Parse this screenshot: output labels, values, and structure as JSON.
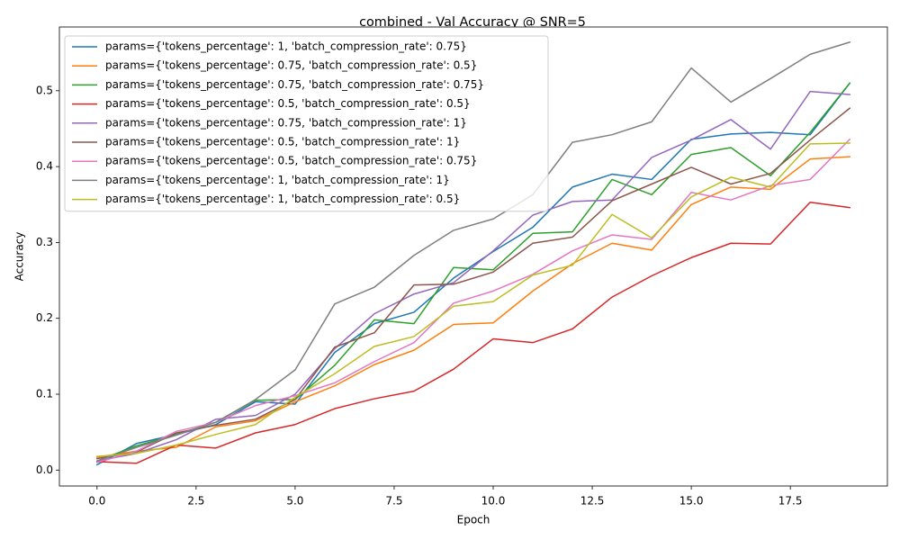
{
  "chart_data": {
    "type": "line",
    "title": "combined - Val Accuracy @ SNR=5",
    "xlabel": "Epoch",
    "ylabel": "Accuracy",
    "xlim": [
      -0.95,
      19.95
    ],
    "ylim": [
      -0.021,
      0.584
    ],
    "xticks": [
      0.0,
      2.5,
      5.0,
      7.5,
      10.0,
      12.5,
      15.0,
      17.5
    ],
    "xtick_labels": [
      "0.0",
      "2.5",
      "5.0",
      "7.5",
      "10.0",
      "12.5",
      "15.0",
      "17.5"
    ],
    "yticks": [
      0.0,
      0.1,
      0.2,
      0.3,
      0.4,
      0.5
    ],
    "ytick_labels": [
      "0.0",
      "0.1",
      "0.2",
      "0.3",
      "0.4",
      "0.5"
    ],
    "grid": false,
    "legend_position": "upper-left",
    "x": [
      0,
      1,
      2,
      3,
      4,
      5,
      6,
      7,
      8,
      9,
      10,
      11,
      12,
      13,
      14,
      15,
      16,
      17,
      18,
      19
    ],
    "series": [
      {
        "name": "params={'tokens_percentage': 1, 'batch_compression_rate': 0.75}",
        "color": "#1f77b4",
        "values": [
          0.007,
          0.035,
          0.047,
          0.06,
          0.09,
          0.087,
          0.155,
          0.193,
          0.208,
          0.253,
          0.288,
          0.32,
          0.373,
          0.39,
          0.383,
          0.436,
          0.443,
          0.445,
          0.442,
          0.51
        ]
      },
      {
        "name": "params={'tokens_percentage': 0.75, 'batch_compression_rate': 0.5}",
        "color": "#ff7f0e",
        "values": [
          0.017,
          0.025,
          0.03,
          0.057,
          0.065,
          0.09,
          0.111,
          0.139,
          0.158,
          0.192,
          0.194,
          0.236,
          0.272,
          0.299,
          0.29,
          0.35,
          0.373,
          0.37,
          0.41,
          0.413
        ]
      },
      {
        "name": "params={'tokens_percentage': 0.75, 'batch_compression_rate': 0.75}",
        "color": "#2ca02c",
        "values": [
          0.012,
          0.032,
          0.047,
          0.063,
          0.092,
          0.093,
          0.138,
          0.198,
          0.193,
          0.267,
          0.264,
          0.312,
          0.314,
          0.383,
          0.363,
          0.416,
          0.425,
          0.388,
          0.445,
          0.51
        ]
      },
      {
        "name": "params={'tokens_percentage': 0.5, 'batch_compression_rate': 0.5}",
        "color": "#d62728",
        "values": [
          0.011,
          0.009,
          0.033,
          0.029,
          0.049,
          0.06,
          0.081,
          0.094,
          0.104,
          0.133,
          0.173,
          0.168,
          0.186,
          0.228,
          0.256,
          0.28,
          0.299,
          0.298,
          0.353,
          0.346
        ]
      },
      {
        "name": "params={'tokens_percentage': 0.75, 'batch_compression_rate': 1}",
        "color": "#9467bd",
        "values": [
          0.012,
          0.022,
          0.04,
          0.067,
          0.072,
          0.1,
          0.16,
          0.206,
          0.232,
          0.247,
          0.289,
          0.336,
          0.354,
          0.356,
          0.412,
          0.435,
          0.462,
          0.423,
          0.499,
          0.495
        ]
      },
      {
        "name": "params={'tokens_percentage': 0.5, 'batch_compression_rate': 1}",
        "color": "#8c564b",
        "values": [
          0.015,
          0.024,
          0.049,
          0.059,
          0.067,
          0.093,
          0.162,
          0.181,
          0.244,
          0.245,
          0.261,
          0.299,
          0.307,
          0.355,
          0.377,
          0.399,
          0.377,
          0.391,
          0.435,
          0.477
        ]
      },
      {
        "name": "params={'tokens_percentage': 0.5, 'batch_compression_rate': 0.75}",
        "color": "#e377c2",
        "values": [
          0.01,
          0.025,
          0.051,
          0.063,
          0.085,
          0.098,
          0.115,
          0.143,
          0.168,
          0.22,
          0.236,
          0.258,
          0.289,
          0.31,
          0.304,
          0.366,
          0.356,
          0.375,
          0.383,
          0.436
        ]
      },
      {
        "name": "params={'tokens_percentage': 1, 'batch_compression_rate': 1}",
        "color": "#7f7f7f",
        "values": [
          0.012,
          0.03,
          0.046,
          0.063,
          0.093,
          0.132,
          0.219,
          0.241,
          0.283,
          0.316,
          0.331,
          0.363,
          0.432,
          0.442,
          0.459,
          0.53,
          0.485,
          0.516,
          0.548,
          0.564
        ]
      },
      {
        "name": "params={'tokens_percentage': 1, 'batch_compression_rate': 0.5}",
        "color": "#bcbd22",
        "values": [
          0.018,
          0.022,
          0.033,
          0.047,
          0.06,
          0.096,
          0.127,
          0.163,
          0.176,
          0.216,
          0.222,
          0.257,
          0.27,
          0.337,
          0.306,
          0.36,
          0.386,
          0.373,
          0.43,
          0.431
        ]
      }
    ]
  }
}
